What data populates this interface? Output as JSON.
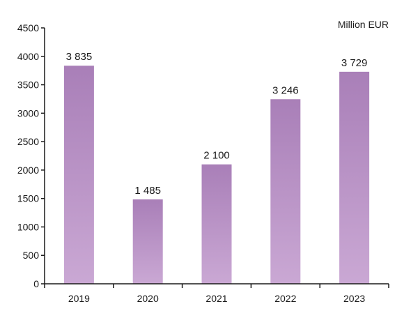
{
  "chart_data": {
    "type": "bar",
    "unit_label": "Million EUR",
    "categories": [
      "2019",
      "2020",
      "2021",
      "2022",
      "2023"
    ],
    "values": [
      3835,
      1485,
      2100,
      3246,
      3729
    ],
    "value_labels": [
      "3 835",
      "1 485",
      "2 100",
      "3 246",
      "3 729"
    ],
    "ylim": [
      0,
      4500
    ],
    "yticks": [
      "0",
      "500",
      "1000",
      "1500",
      "2000",
      "2500",
      "3000",
      "3500",
      "4000",
      "4500"
    ],
    "grid": false,
    "colors": {
      "bar_top": "#a97fb8",
      "bar_bottom": "#caa8d4",
      "axis": "#1a1a1a"
    }
  }
}
